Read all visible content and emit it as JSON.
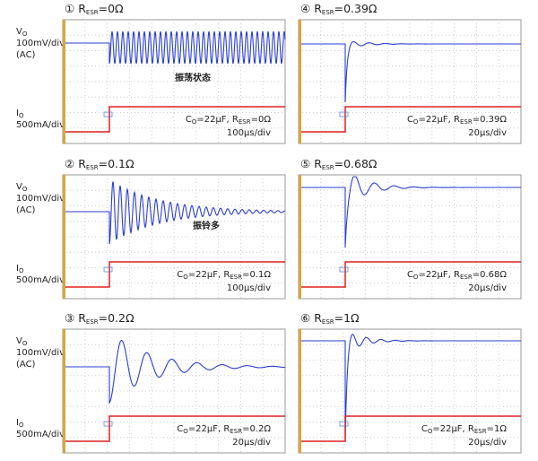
{
  "rows": [
    {
      "vo": [
        "V",
        "O"
      ],
      "vscale": "100mV/div",
      "ac": "(AC)",
      "io": [
        "I",
        "O"
      ],
      "iscale": "500mA/div"
    },
    {
      "vo": [
        "V",
        "O"
      ],
      "vscale": "100mV/div",
      "ac": "(AC)",
      "io": [
        "I",
        "O"
      ],
      "iscale": "500mA/div"
    },
    {
      "vo": [
        "V",
        "O"
      ],
      "vscale": "100mV/div",
      "ac": "(AC)",
      "io": [
        "I",
        "O"
      ],
      "iscale": "500mA/div"
    }
  ],
  "panels": [
    {
      "number": "①",
      "title": [
        "R",
        "ESR",
        "=0Ω"
      ],
      "annotation": "振荡状态",
      "condition": [
        "C",
        "O",
        "=22μF, R",
        "ESR",
        "=0Ω"
      ],
      "timebase": "100μs/div"
    },
    {
      "number": "④",
      "title": [
        "R",
        "ESR",
        "=0.39Ω"
      ],
      "condition": [
        "C",
        "O",
        "=22μF, R",
        "ESR",
        "=0.39Ω"
      ],
      "timebase": "20μs/div"
    },
    {
      "number": "②",
      "title": [
        "R",
        "ESR",
        "=0.1Ω"
      ],
      "annotation": "振铃多",
      "condition": [
        "C",
        "O",
        "=22μF, R",
        "ESR",
        "=0.1Ω"
      ],
      "timebase": "100μs/div"
    },
    {
      "number": "⑤",
      "title": [
        "R",
        "ESR",
        "=0.68Ω"
      ],
      "condition": [
        "C",
        "O",
        "=22μF, R",
        "ESR",
        "=0.68Ω"
      ],
      "timebase": "20μs/div"
    },
    {
      "number": "③",
      "title": [
        "R",
        "ESR",
        "=0.2Ω"
      ],
      "condition": [
        "C",
        "O",
        "=22μF, R",
        "ESR",
        "=0.2Ω"
      ],
      "timebase": "20μs/div"
    },
    {
      "number": "⑥",
      "title": [
        "R",
        "ESR",
        "=1Ω"
      ],
      "condition": [
        "C",
        "O",
        "=22μF, R",
        "ESR",
        "=1Ω"
      ],
      "timebase": "20μs/div"
    }
  ]
}
